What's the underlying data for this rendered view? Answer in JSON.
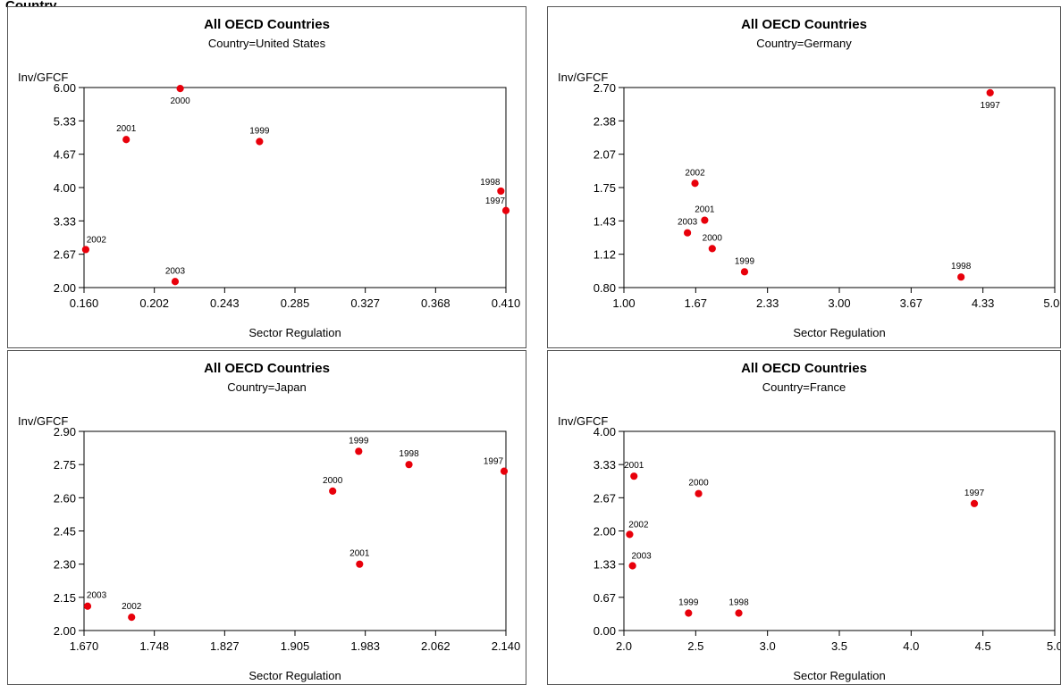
{
  "page": {
    "header_fragment": "Country"
  },
  "chart_data": [
    {
      "type": "scatter",
      "title": "All OECD Countries",
      "subtitle": "Country=United States",
      "xlabel": "Sector Regulation",
      "ylabel": "Inv/GFCF",
      "xlim": [
        0.16,
        0.41
      ],
      "ylim": [
        2.0,
        6.0
      ],
      "xticks": [
        "0.160",
        "0.202",
        "0.243",
        "0.285",
        "0.327",
        "0.368",
        "0.410"
      ],
      "yticks": [
        "2.00",
        "2.67",
        "3.33",
        "4.00",
        "4.67",
        "5.33",
        "6.00"
      ],
      "marker_color": "#e8000b",
      "points": [
        {
          "label": "1997",
          "x": 0.41,
          "y": 3.54
        },
        {
          "label": "1998",
          "x": 0.407,
          "y": 3.93
        },
        {
          "label": "1999",
          "x": 0.264,
          "y": 4.92
        },
        {
          "label": "2000",
          "x": 0.217,
          "y": 5.98
        },
        {
          "label": "2001",
          "x": 0.185,
          "y": 4.96
        },
        {
          "label": "2002",
          "x": 0.161,
          "y": 2.76
        },
        {
          "label": "2003",
          "x": 0.214,
          "y": 2.12
        }
      ]
    },
    {
      "type": "scatter",
      "title": "All OECD Countries",
      "subtitle": "Country=Germany",
      "xlabel": "Sector Regulation",
      "ylabel": "Inv/GFCF",
      "xlim": [
        1.0,
        5.0
      ],
      "ylim": [
        0.8,
        2.7
      ],
      "xticks": [
        "1.00",
        "1.67",
        "2.33",
        "3.00",
        "3.67",
        "4.33",
        "5.00"
      ],
      "yticks": [
        "0.80",
        "1.12",
        "1.43",
        "1.75",
        "2.07",
        "2.38",
        "2.70"
      ],
      "marker_color": "#e8000b",
      "points": [
        {
          "label": "1997",
          "x": 4.4,
          "y": 2.65
        },
        {
          "label": "1998",
          "x": 4.13,
          "y": 0.9
        },
        {
          "label": "1999",
          "x": 2.12,
          "y": 0.95
        },
        {
          "label": "2000",
          "x": 1.82,
          "y": 1.17
        },
        {
          "label": "2001",
          "x": 1.75,
          "y": 1.44
        },
        {
          "label": "2002",
          "x": 1.66,
          "y": 1.79
        },
        {
          "label": "2003",
          "x": 1.59,
          "y": 1.32
        }
      ]
    },
    {
      "type": "scatter",
      "title": "All OECD Countries",
      "subtitle": "Country=Japan",
      "xlabel": "Sector Regulation",
      "ylabel": "Inv/GFCF",
      "xlim": [
        1.67,
        2.14
      ],
      "ylim": [
        2.0,
        2.9
      ],
      "xticks": [
        "1.670",
        "1.748",
        "1.827",
        "1.905",
        "1.983",
        "2.062",
        "2.140"
      ],
      "yticks": [
        "2.00",
        "2.15",
        "2.30",
        "2.45",
        "2.60",
        "2.75",
        "2.90"
      ],
      "marker_color": "#e8000b",
      "points": [
        {
          "label": "1997",
          "x": 2.138,
          "y": 2.72
        },
        {
          "label": "1998",
          "x": 2.032,
          "y": 2.75
        },
        {
          "label": "1999",
          "x": 1.976,
          "y": 2.81
        },
        {
          "label": "2000",
          "x": 1.947,
          "y": 2.63
        },
        {
          "label": "2001",
          "x": 1.977,
          "y": 2.3
        },
        {
          "label": "2002",
          "x": 1.723,
          "y": 2.06
        },
        {
          "label": "2003",
          "x": 1.674,
          "y": 2.11
        }
      ]
    },
    {
      "type": "scatter",
      "title": "All OECD Countries",
      "subtitle": "Country=France",
      "xlabel": "Sector Regulation",
      "ylabel": "Inv/GFCF",
      "xlim": [
        2.0,
        5.0
      ],
      "ylim": [
        0.0,
        4.0
      ],
      "xticks": [
        "2.0",
        "2.5",
        "3.0",
        "3.5",
        "4.0",
        "4.5",
        "5.0"
      ],
      "yticks": [
        "0.00",
        "0.67",
        "1.33",
        "2.00",
        "2.67",
        "3.33",
        "4.00"
      ],
      "marker_color": "#e8000b",
      "points": [
        {
          "label": "1997",
          "x": 4.44,
          "y": 2.55
        },
        {
          "label": "1998",
          "x": 2.8,
          "y": 0.35
        },
        {
          "label": "1999",
          "x": 2.45,
          "y": 0.35
        },
        {
          "label": "2000",
          "x": 2.52,
          "y": 2.75
        },
        {
          "label": "2001",
          "x": 2.07,
          "y": 3.1
        },
        {
          "label": "2002",
          "x": 2.04,
          "y": 1.93
        },
        {
          "label": "2003",
          "x": 2.06,
          "y": 1.3
        }
      ]
    }
  ]
}
